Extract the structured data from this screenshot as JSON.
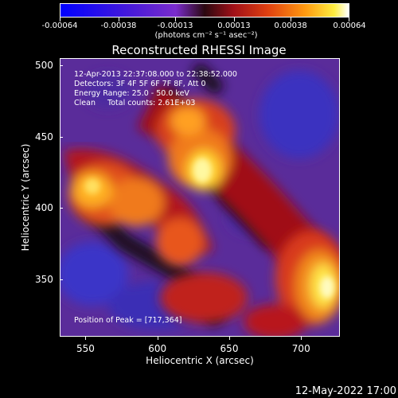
{
  "colorbar": {
    "ticks": [
      "-0.00064",
      "-0.00038",
      "-0.00013",
      "0.00013",
      "0.00038",
      "0.00064"
    ],
    "units": "(photons cm⁻² s⁻¹ asec⁻²)"
  },
  "plot": {
    "title": "Reconstructed RHESSI Image",
    "annotation_lines": [
      "12-Apr-2013 22:37:08.000 to 22:38:52.000",
      "Detectors: 3F 4F 5F 6F 7F 8F, Att 0",
      "Energy Range: 25.0 - 50.0 keV",
      "Clean     Total counts: 2.61E+03"
    ],
    "peak_label": "Position of Peak = [717,364]",
    "x_ticks": [
      "550",
      "600",
      "650",
      "700"
    ],
    "y_ticks": [
      "350",
      "400",
      "450",
      "500"
    ],
    "x_title": "Heliocentric X (arcsec)",
    "y_title": "Heliocentric Y (arcsec)"
  },
  "footer": {
    "date": "12-May-2022 17:00"
  },
  "colors": {
    "background": "#000000",
    "low": "#1e3cff",
    "mid": "#7a2ccc",
    "high": "#ffe000"
  }
}
